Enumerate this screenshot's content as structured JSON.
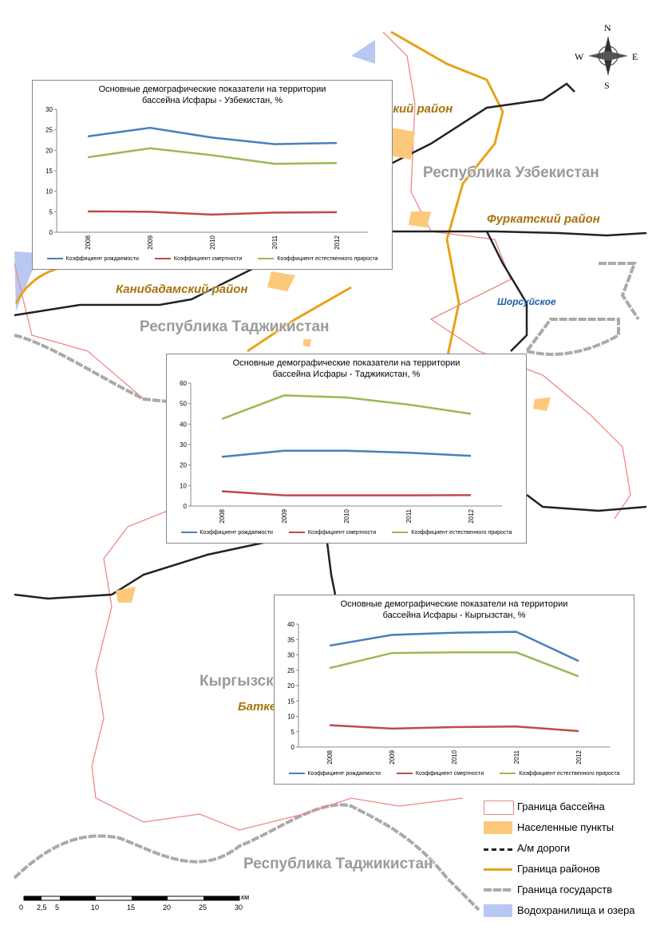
{
  "map": {
    "labels": [
      {
        "text": "ский район",
        "kind": "district"
      },
      {
        "text": "Республика Узбекистан",
        "kind": "country"
      },
      {
        "text": "Фуркатский район",
        "kind": "district"
      },
      {
        "text": "Канибадамский район",
        "kind": "district"
      },
      {
        "text": "Республика Таджикистан",
        "kind": "country"
      },
      {
        "text": "Шорсуйское",
        "kind": "village"
      },
      {
        "text": "Кыргызска",
        "kind": "country"
      },
      {
        "text": "Батке",
        "kind": "district"
      },
      {
        "text": "Республика Таджикистан",
        "kind": "country"
      }
    ],
    "compass": {
      "n": "N",
      "s": "S",
      "w": "W",
      "e": "E"
    },
    "legend": [
      "Граница бассейна",
      "Населенные пункты",
      "А/м дороги",
      "Граница районов",
      "Граница государств",
      "Водохранилища и озера"
    ],
    "scale": {
      "labels": [
        "0",
        "2,5",
        "5",
        "10",
        "15",
        "20",
        "25",
        "30"
      ],
      "unit": "км"
    }
  },
  "chart_data": [
    {
      "type": "line",
      "title": "Основные демографические показатели на территории бассейна Исфары - Узбекистан, %",
      "categories": [
        "2008",
        "2009",
        "2010",
        "2011",
        "2012"
      ],
      "ylim": [
        0,
        30
      ],
      "yticks": [
        0,
        5,
        10,
        15,
        20,
        25,
        30
      ],
      "series": [
        {
          "name": "Коэффициент рождаемости",
          "color": "#4a7ebb",
          "values": [
            23.4,
            25.5,
            23.1,
            21.5,
            21.8
          ]
        },
        {
          "name": "Коэффициент смертности",
          "color": "#be4b48",
          "values": [
            5.1,
            5.0,
            4.3,
            4.8,
            4.9
          ]
        },
        {
          "name": "Коэффициент естественного прироста",
          "color": "#98b954",
          "values": [
            18.3,
            20.5,
            18.8,
            16.7,
            16.9
          ]
        }
      ]
    },
    {
      "type": "line",
      "title": "Основные демографические показатели на территории бассейна Исфары - Таджикистан, %",
      "categories": [
        "2008",
        "2009",
        "2010",
        "2011",
        "2012"
      ],
      "ylim": [
        0,
        60
      ],
      "yticks": [
        0,
        10,
        20,
        30,
        40,
        50,
        60
      ],
      "series": [
        {
          "name": "Коэффициент рождаемости",
          "color": "#4a7ebb",
          "values": [
            24,
            27,
            27,
            26,
            24.5
          ]
        },
        {
          "name": "Коэффициент смертности",
          "color": "#be4b48",
          "values": [
            7.2,
            5.2,
            5.2,
            5.2,
            5.3
          ]
        },
        {
          "name": "Коэффициент естественного прироста",
          "color": "#98b954",
          "values": [
            42.5,
            54,
            53,
            49.5,
            45
          ]
        }
      ]
    },
    {
      "type": "line",
      "title": "Основные демографические показатели на территории бассейна Исфары - Кыргызстан, %",
      "categories": [
        "2008",
        "2009",
        "2010",
        "2011",
        "2012"
      ],
      "ylim": [
        0,
        40
      ],
      "yticks": [
        0,
        5,
        10,
        15,
        20,
        25,
        30,
        35,
        40
      ],
      "series": [
        {
          "name": "Коэффициент рождаемости",
          "color": "#4a7ebb",
          "values": [
            33,
            36.5,
            37.2,
            37.5,
            28
          ]
        },
        {
          "name": "Коэффициент смертности",
          "color": "#be4b48",
          "values": [
            7.1,
            6.0,
            6.5,
            6.7,
            5.2
          ]
        },
        {
          "name": "Коэффициент естественного прироста",
          "color": "#98b954",
          "values": [
            25.7,
            30.6,
            30.8,
            30.8,
            23
          ]
        }
      ]
    }
  ]
}
